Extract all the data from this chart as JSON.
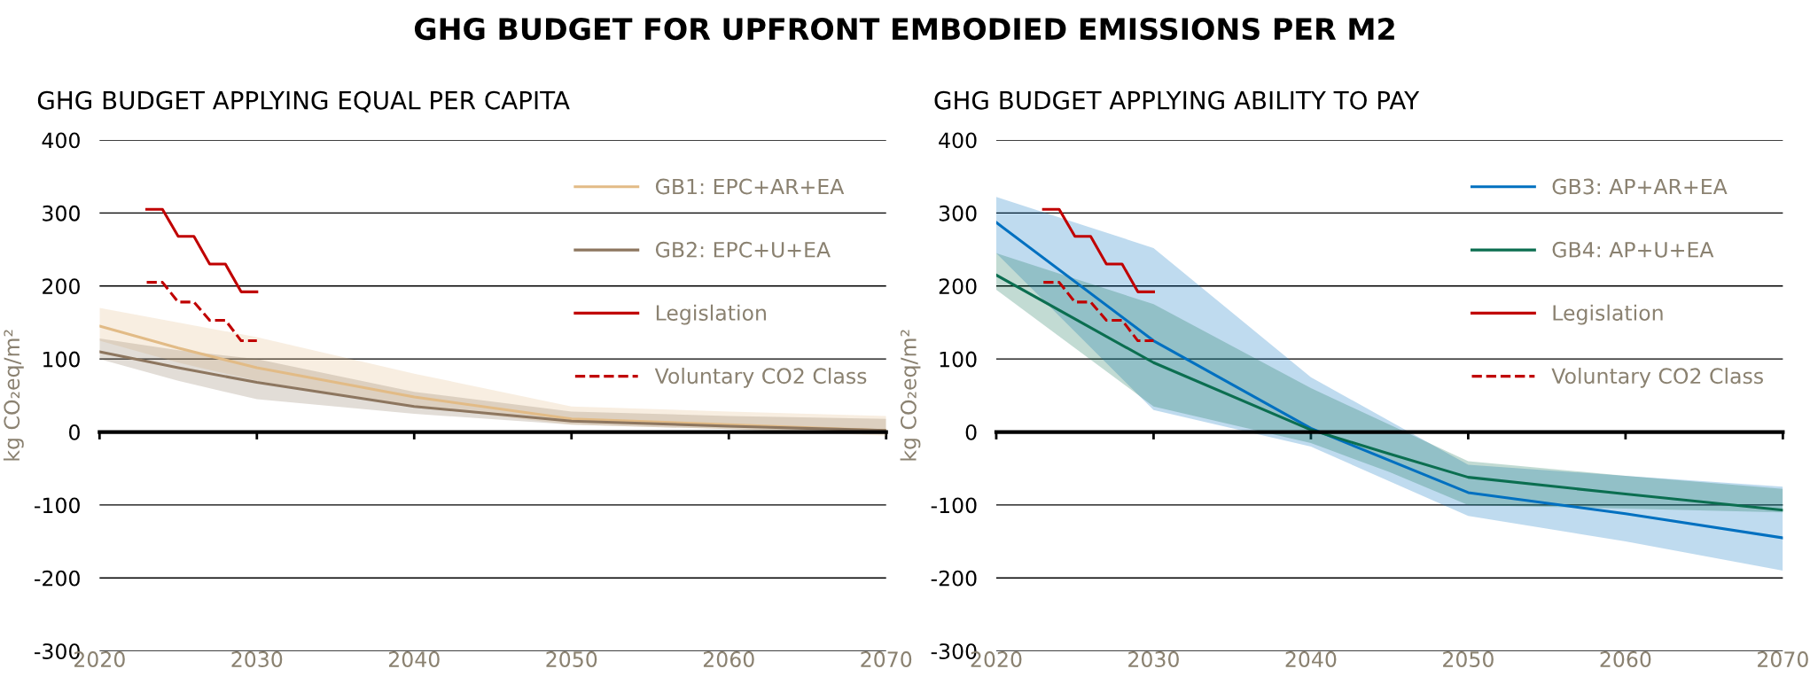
{
  "chart_data": [
    {
      "type": "line",
      "title": "GHG BUDGET APPLYING EQUAL PER CAPITA",
      "ylabel": "kg CO₂eq/m²",
      "annotations": [
        "GHG BUDGET FOR UPFRONT EMBODIED EMISSIONS PER M2"
      ],
      "xlim": [
        2020,
        2070
      ],
      "xticks": [
        2020,
        2030,
        2040,
        2050,
        2060,
        2070
      ],
      "ylim": [
        -300,
        400
      ],
      "yticks": [
        -300,
        -200,
        -100,
        0,
        100,
        200,
        300,
        400
      ],
      "grid": "y",
      "legend": "right",
      "series": [
        {
          "name": "GB1: EPC+AR+EA",
          "color": "#e2bb86",
          "x": [
            2020,
            2025,
            2030,
            2040,
            2050,
            2060,
            2070
          ],
          "values": [
            145,
            115,
            88,
            48,
            18,
            10,
            2
          ],
          "lower": [
            125,
            95,
            70,
            35,
            10,
            4,
            -5
          ],
          "upper": [
            170,
            150,
            130,
            80,
            35,
            28,
            22
          ]
        },
        {
          "name": "GB2: EPC+U+EA",
          "color": "#8d765f",
          "x": [
            2020,
            2025,
            2030,
            2040,
            2050,
            2060,
            2070
          ],
          "values": [
            110,
            88,
            68,
            35,
            15,
            8,
            2
          ],
          "lower": [
            100,
            70,
            45,
            25,
            10,
            4,
            -3
          ],
          "upper": [
            128,
            112,
            100,
            55,
            28,
            22,
            18
          ]
        },
        {
          "name": "Legislation",
          "color": "#c00000",
          "line_style": "solid",
          "x": [
            2023,
            2024,
            2025,
            2026,
            2027,
            2028,
            2029,
            2030
          ],
          "values": [
            305,
            305,
            268,
            268,
            230,
            230,
            192,
            192
          ]
        },
        {
          "name": "Voluntary CO2 Class",
          "color": "#c00000",
          "line_style": "dashed",
          "x": [
            2023,
            2024,
            2025,
            2026,
            2027,
            2028,
            2029,
            2030
          ],
          "values": [
            205,
            205,
            178,
            178,
            153,
            153,
            125,
            125
          ]
        }
      ]
    },
    {
      "type": "line",
      "title": "GHG BUDGET APPLYING ABILITY TO PAY",
      "ylabel": "kg CO₂eq/m²",
      "xlim": [
        2020,
        2070
      ],
      "xticks": [
        2020,
        2030,
        2040,
        2050,
        2060,
        2070
      ],
      "ylim": [
        -300,
        400
      ],
      "yticks": [
        -300,
        -200,
        -100,
        0,
        100,
        200,
        300,
        400
      ],
      "grid": "y",
      "legend": "right",
      "series": [
        {
          "name": "GB3: AP+AR+EA",
          "color": "#0070c0",
          "x": [
            2020,
            2030,
            2040,
            2050,
            2060,
            2070
          ],
          "values": [
            287,
            125,
            5,
            -83,
            -112,
            -145
          ],
          "lower": [
            245,
            30,
            -20,
            -115,
            -150,
            -190
          ],
          "upper": [
            322,
            252,
            75,
            -45,
            -60,
            -75
          ]
        },
        {
          "name": "GB4: AP+U+EA",
          "color": "#0b6e50",
          "x": [
            2020,
            2030,
            2040,
            2045,
            2050,
            2060,
            2070
          ],
          "values": [
            215,
            95,
            3,
            -30,
            -62,
            -85,
            -107
          ],
          "lower": [
            195,
            35,
            -15,
            -55,
            -100,
            -105,
            -110
          ],
          "upper": [
            245,
            175,
            60,
            10,
            -40,
            -60,
            -78
          ]
        },
        {
          "name": "Legislation",
          "color": "#c00000",
          "line_style": "solid",
          "x": [
            2023,
            2024,
            2025,
            2026,
            2027,
            2028,
            2029,
            2030
          ],
          "values": [
            305,
            305,
            268,
            268,
            230,
            230,
            192,
            192
          ]
        },
        {
          "name": "Voluntary CO2 Class",
          "color": "#c00000",
          "line_style": "dashed",
          "x": [
            2023,
            2024,
            2025,
            2026,
            2027,
            2028,
            2029,
            2030
          ],
          "values": [
            205,
            205,
            178,
            178,
            153,
            153,
            125,
            125
          ]
        }
      ]
    }
  ]
}
